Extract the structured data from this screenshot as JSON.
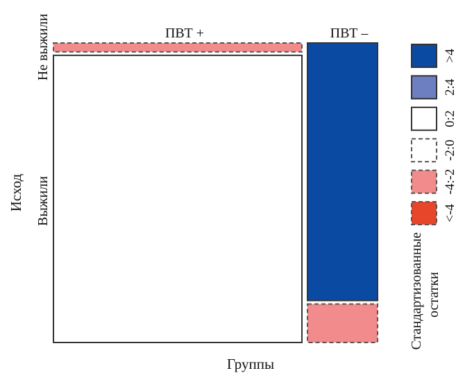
{
  "chart_data": {
    "type": "mosaic",
    "xlabel": "Группы",
    "ylabel": "Исход",
    "columns": [
      {
        "label": "ПВТ +",
        "width_fraction": 0.78
      },
      {
        "label": "ПВТ –",
        "width_fraction": 0.22
      }
    ],
    "rows": [
      "Не выжили",
      "Выжили"
    ],
    "cells": [
      {
        "column": "ПВТ +",
        "row": "Не выжили",
        "fraction": 0.03,
        "residual_class": "-4:-2"
      },
      {
        "column": "ПВТ +",
        "row": "Выжили",
        "fraction": 0.97,
        "residual_class": "0:2"
      },
      {
        "column": "ПВТ –",
        "row": "Не выжили",
        "fraction": 0.87,
        "residual_class": ">4"
      },
      {
        "column": "ПВТ –",
        "row": "Выжили",
        "fraction": 0.13,
        "residual_class": "-4:-2"
      }
    ],
    "legend": {
      "title_lines": [
        "Стандартизованные",
        "остатки"
      ],
      "placement": "right",
      "entries": [
        {
          "label": ">4",
          "color": "#0b4aa3",
          "border": "solid"
        },
        {
          "label": "2:4",
          "color": "#6d7fc0",
          "border": "solid"
        },
        {
          "label": "0:2",
          "color": "#ffffff",
          "border": "solid"
        },
        {
          "label": "-2:0",
          "color": "#ffffff",
          "border": "dashed"
        },
        {
          "label": "-4:-2",
          "color": "#f28b8b",
          "border": "dashed"
        },
        {
          "label": "<-4",
          "color": "#e8462a",
          "border": "dashed"
        }
      ]
    }
  }
}
